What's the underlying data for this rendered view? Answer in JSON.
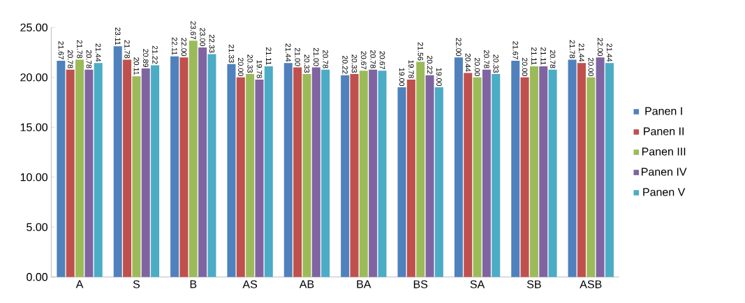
{
  "chart_data": {
    "type": "bar",
    "categories": [
      "A",
      "S",
      "B",
      "AS",
      "AB",
      "BA",
      "BS",
      "SA",
      "SB",
      "ASB"
    ],
    "ylim": [
      0,
      25
    ],
    "yticks": [
      {
        "value": 0,
        "label": "0.00"
      },
      {
        "value": 5,
        "label": "5.00"
      },
      {
        "value": 10,
        "label": "10.00"
      },
      {
        "value": 15,
        "label": "15.00"
      },
      {
        "value": 20,
        "label": "20.00"
      },
      {
        "value": 25,
        "label": "25.00"
      }
    ],
    "legend": "right",
    "grid": false,
    "series": [
      {
        "name": "Panen I",
        "color": "#4f81bd",
        "values": [
          21.67,
          23.11,
          22.11,
          21.33,
          21.44,
          20.22,
          19.0,
          22.0,
          21.67,
          21.78
        ],
        "value_labels": [
          "21.67",
          "23.11",
          "22.11",
          "21.33",
          "21.44",
          "20.22",
          "19.00",
          "22.00",
          "21.67",
          "21.78"
        ]
      },
      {
        "name": "Panen II",
        "color": "#c0504d",
        "values": [
          20.78,
          21.78,
          22.0,
          20.0,
          21.0,
          20.33,
          19.78,
          20.44,
          20.0,
          21.44
        ],
        "value_labels": [
          "20.78",
          "21.78",
          "22.00",
          "20.00",
          "21.00",
          "20.33",
          "19.78",
          "20.44",
          "20.00",
          "21.44"
        ]
      },
      {
        "name": "Panen III",
        "color": "#9bbb59",
        "values": [
          21.78,
          20.11,
          23.67,
          20.33,
          20.33,
          20.67,
          21.56,
          20.0,
          21.11,
          20.0
        ],
        "value_labels": [
          "21.78",
          "20.11",
          "23.67",
          "20.33",
          "20.33",
          "20.67",
          "21.56",
          "20.00",
          "21.11",
          "20.00"
        ]
      },
      {
        "name": "Panen IV",
        "color": "#8064a2",
        "values": [
          20.78,
          20.89,
          23.0,
          19.78,
          21.0,
          20.78,
          20.22,
          20.78,
          21.11,
          22.0
        ],
        "value_labels": [
          "20.78",
          "20.89",
          "23.00",
          "19.78",
          "21.00",
          "20.78",
          "20.22",
          "20.78",
          "21.11",
          "22.00"
        ]
      },
      {
        "name": "Panen V",
        "color": "#4bacc6",
        "values": [
          21.44,
          21.22,
          22.33,
          21.11,
          20.78,
          20.67,
          19.0,
          20.33,
          20.78,
          21.44
        ],
        "value_labels": [
          "21.44",
          "21.22",
          "22.33",
          "21.11",
          "20.78",
          "20.67",
          "19.00",
          "20.33",
          "20.78",
          "21.44"
        ]
      }
    ]
  }
}
